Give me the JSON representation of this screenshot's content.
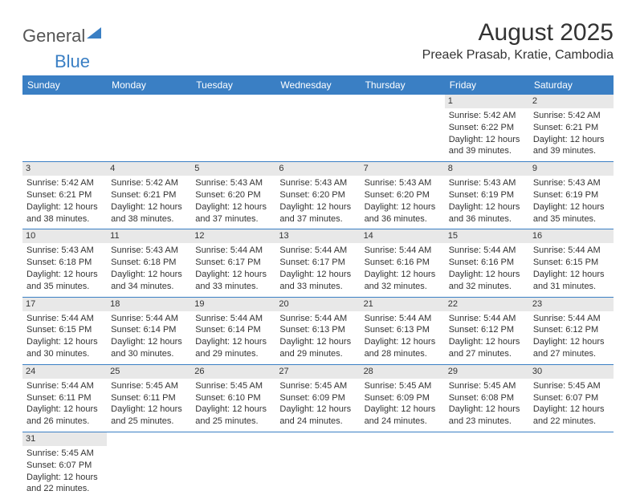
{
  "logo": {
    "text1": "General",
    "text2": "Blue"
  },
  "title": "August 2025",
  "location": "Preaek Prasab, Kratie, Cambodia",
  "weekdays": [
    "Sunday",
    "Monday",
    "Tuesday",
    "Wednesday",
    "Thursday",
    "Friday",
    "Saturday"
  ],
  "colors": {
    "header_bg": "#3a7fc4",
    "header_text": "#ffffff",
    "daynum_bg": "#e8e8e8",
    "border": "#3a7fc4"
  },
  "weeks": [
    [
      null,
      null,
      null,
      null,
      null,
      {
        "day": "1",
        "sunrise": "Sunrise: 5:42 AM",
        "sunset": "Sunset: 6:22 PM",
        "daylight1": "Daylight: 12 hours",
        "daylight2": "and 39 minutes."
      },
      {
        "day": "2",
        "sunrise": "Sunrise: 5:42 AM",
        "sunset": "Sunset: 6:21 PM",
        "daylight1": "Daylight: 12 hours",
        "daylight2": "and 39 minutes."
      }
    ],
    [
      {
        "day": "3",
        "sunrise": "Sunrise: 5:42 AM",
        "sunset": "Sunset: 6:21 PM",
        "daylight1": "Daylight: 12 hours",
        "daylight2": "and 38 minutes."
      },
      {
        "day": "4",
        "sunrise": "Sunrise: 5:42 AM",
        "sunset": "Sunset: 6:21 PM",
        "daylight1": "Daylight: 12 hours",
        "daylight2": "and 38 minutes."
      },
      {
        "day": "5",
        "sunrise": "Sunrise: 5:43 AM",
        "sunset": "Sunset: 6:20 PM",
        "daylight1": "Daylight: 12 hours",
        "daylight2": "and 37 minutes."
      },
      {
        "day": "6",
        "sunrise": "Sunrise: 5:43 AM",
        "sunset": "Sunset: 6:20 PM",
        "daylight1": "Daylight: 12 hours",
        "daylight2": "and 37 minutes."
      },
      {
        "day": "7",
        "sunrise": "Sunrise: 5:43 AM",
        "sunset": "Sunset: 6:20 PM",
        "daylight1": "Daylight: 12 hours",
        "daylight2": "and 36 minutes."
      },
      {
        "day": "8",
        "sunrise": "Sunrise: 5:43 AM",
        "sunset": "Sunset: 6:19 PM",
        "daylight1": "Daylight: 12 hours",
        "daylight2": "and 36 minutes."
      },
      {
        "day": "9",
        "sunrise": "Sunrise: 5:43 AM",
        "sunset": "Sunset: 6:19 PM",
        "daylight1": "Daylight: 12 hours",
        "daylight2": "and 35 minutes."
      }
    ],
    [
      {
        "day": "10",
        "sunrise": "Sunrise: 5:43 AM",
        "sunset": "Sunset: 6:18 PM",
        "daylight1": "Daylight: 12 hours",
        "daylight2": "and 35 minutes."
      },
      {
        "day": "11",
        "sunrise": "Sunrise: 5:43 AM",
        "sunset": "Sunset: 6:18 PM",
        "daylight1": "Daylight: 12 hours",
        "daylight2": "and 34 minutes."
      },
      {
        "day": "12",
        "sunrise": "Sunrise: 5:44 AM",
        "sunset": "Sunset: 6:17 PM",
        "daylight1": "Daylight: 12 hours",
        "daylight2": "and 33 minutes."
      },
      {
        "day": "13",
        "sunrise": "Sunrise: 5:44 AM",
        "sunset": "Sunset: 6:17 PM",
        "daylight1": "Daylight: 12 hours",
        "daylight2": "and 33 minutes."
      },
      {
        "day": "14",
        "sunrise": "Sunrise: 5:44 AM",
        "sunset": "Sunset: 6:16 PM",
        "daylight1": "Daylight: 12 hours",
        "daylight2": "and 32 minutes."
      },
      {
        "day": "15",
        "sunrise": "Sunrise: 5:44 AM",
        "sunset": "Sunset: 6:16 PM",
        "daylight1": "Daylight: 12 hours",
        "daylight2": "and 32 minutes."
      },
      {
        "day": "16",
        "sunrise": "Sunrise: 5:44 AM",
        "sunset": "Sunset: 6:15 PM",
        "daylight1": "Daylight: 12 hours",
        "daylight2": "and 31 minutes."
      }
    ],
    [
      {
        "day": "17",
        "sunrise": "Sunrise: 5:44 AM",
        "sunset": "Sunset: 6:15 PM",
        "daylight1": "Daylight: 12 hours",
        "daylight2": "and 30 minutes."
      },
      {
        "day": "18",
        "sunrise": "Sunrise: 5:44 AM",
        "sunset": "Sunset: 6:14 PM",
        "daylight1": "Daylight: 12 hours",
        "daylight2": "and 30 minutes."
      },
      {
        "day": "19",
        "sunrise": "Sunrise: 5:44 AM",
        "sunset": "Sunset: 6:14 PM",
        "daylight1": "Daylight: 12 hours",
        "daylight2": "and 29 minutes."
      },
      {
        "day": "20",
        "sunrise": "Sunrise: 5:44 AM",
        "sunset": "Sunset: 6:13 PM",
        "daylight1": "Daylight: 12 hours",
        "daylight2": "and 29 minutes."
      },
      {
        "day": "21",
        "sunrise": "Sunrise: 5:44 AM",
        "sunset": "Sunset: 6:13 PM",
        "daylight1": "Daylight: 12 hours",
        "daylight2": "and 28 minutes."
      },
      {
        "day": "22",
        "sunrise": "Sunrise: 5:44 AM",
        "sunset": "Sunset: 6:12 PM",
        "daylight1": "Daylight: 12 hours",
        "daylight2": "and 27 minutes."
      },
      {
        "day": "23",
        "sunrise": "Sunrise: 5:44 AM",
        "sunset": "Sunset: 6:12 PM",
        "daylight1": "Daylight: 12 hours",
        "daylight2": "and 27 minutes."
      }
    ],
    [
      {
        "day": "24",
        "sunrise": "Sunrise: 5:44 AM",
        "sunset": "Sunset: 6:11 PM",
        "daylight1": "Daylight: 12 hours",
        "daylight2": "and 26 minutes."
      },
      {
        "day": "25",
        "sunrise": "Sunrise: 5:45 AM",
        "sunset": "Sunset: 6:11 PM",
        "daylight1": "Daylight: 12 hours",
        "daylight2": "and 25 minutes."
      },
      {
        "day": "26",
        "sunrise": "Sunrise: 5:45 AM",
        "sunset": "Sunset: 6:10 PM",
        "daylight1": "Daylight: 12 hours",
        "daylight2": "and 25 minutes."
      },
      {
        "day": "27",
        "sunrise": "Sunrise: 5:45 AM",
        "sunset": "Sunset: 6:09 PM",
        "daylight1": "Daylight: 12 hours",
        "daylight2": "and 24 minutes."
      },
      {
        "day": "28",
        "sunrise": "Sunrise: 5:45 AM",
        "sunset": "Sunset: 6:09 PM",
        "daylight1": "Daylight: 12 hours",
        "daylight2": "and 24 minutes."
      },
      {
        "day": "29",
        "sunrise": "Sunrise: 5:45 AM",
        "sunset": "Sunset: 6:08 PM",
        "daylight1": "Daylight: 12 hours",
        "daylight2": "and 23 minutes."
      },
      {
        "day": "30",
        "sunrise": "Sunrise: 5:45 AM",
        "sunset": "Sunset: 6:07 PM",
        "daylight1": "Daylight: 12 hours",
        "daylight2": "and 22 minutes."
      }
    ],
    [
      {
        "day": "31",
        "sunrise": "Sunrise: 5:45 AM",
        "sunset": "Sunset: 6:07 PM",
        "daylight1": "Daylight: 12 hours",
        "daylight2": "and 22 minutes."
      },
      null,
      null,
      null,
      null,
      null,
      null
    ]
  ]
}
